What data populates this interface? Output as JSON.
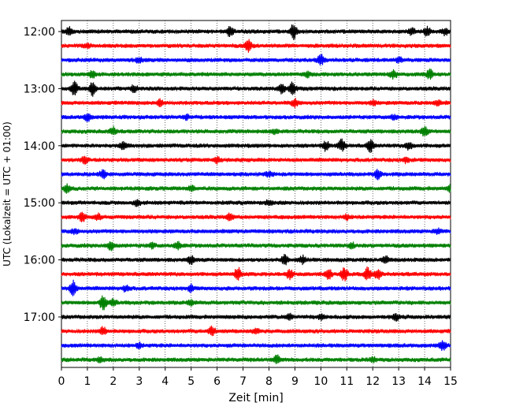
{
  "chart_data": {
    "type": "line",
    "title": "",
    "xlabel": "Zeit  [min]",
    "ylabel": "UTC (Lokalzeit = UTC + 01:00)",
    "xlim": [
      0,
      15
    ],
    "x_ticks": [
      "0",
      "1",
      "2",
      "3",
      "4",
      "5",
      "6",
      "7",
      "8",
      "9",
      "10",
      "11",
      "12",
      "13",
      "14",
      "15"
    ],
    "y_ticks": [
      "12:00",
      "13:00",
      "14:00",
      "15:00",
      "16:00",
      "17:00"
    ],
    "y_tick_rows": [
      0,
      4,
      8,
      12,
      16,
      20
    ],
    "grid": "vertical dotted at each minute",
    "trace_interval_min": 15,
    "row_colors": [
      "#000000",
      "#ff0000",
      "#0000ff",
      "#008000"
    ],
    "rows": [
      {
        "start": "12:00",
        "events": [
          [
            0.3,
            0.5
          ],
          [
            6.5,
            0.6
          ],
          [
            8.95,
            1.0
          ],
          [
            13.5,
            0.4
          ],
          [
            14.1,
            0.6
          ],
          [
            14.8,
            0.4
          ]
        ]
      },
      {
        "start": "12:15",
        "events": [
          [
            7.2,
            0.8
          ],
          [
            1.0,
            0.3
          ]
        ]
      },
      {
        "start": "12:30",
        "events": [
          [
            10.0,
            0.7
          ],
          [
            3.0,
            0.3
          ],
          [
            13.0,
            0.3
          ]
        ]
      },
      {
        "start": "12:45",
        "events": [
          [
            1.2,
            0.5
          ],
          [
            12.8,
            0.5
          ],
          [
            14.2,
            0.6
          ],
          [
            9.5,
            0.3
          ]
        ]
      },
      {
        "start": "13:00",
        "events": [
          [
            0.5,
            1.0
          ],
          [
            1.2,
            0.9
          ],
          [
            2.8,
            0.4
          ],
          [
            8.5,
            0.7
          ],
          [
            8.9,
            0.8
          ]
        ]
      },
      {
        "start": "13:15",
        "events": [
          [
            3.8,
            0.4
          ],
          [
            9.0,
            0.5
          ],
          [
            12.0,
            0.3
          ],
          [
            14.5,
            0.3
          ]
        ]
      },
      {
        "start": "13:30",
        "events": [
          [
            1.0,
            0.5
          ],
          [
            4.8,
            0.3
          ],
          [
            12.8,
            0.3
          ]
        ]
      },
      {
        "start": "13:45",
        "events": [
          [
            2.0,
            0.5
          ],
          [
            8.2,
            0.3
          ],
          [
            14.0,
            0.6
          ]
        ]
      },
      {
        "start": "14:00",
        "events": [
          [
            2.4,
            0.5
          ],
          [
            10.2,
            0.6
          ],
          [
            10.8,
            0.8
          ],
          [
            11.9,
            0.8
          ],
          [
            13.4,
            0.5
          ]
        ]
      },
      {
        "start": "14:15",
        "events": [
          [
            0.9,
            0.4
          ],
          [
            6.0,
            0.4
          ],
          [
            13.3,
            0.3
          ]
        ]
      },
      {
        "start": "14:30",
        "events": [
          [
            1.6,
            0.5
          ],
          [
            12.2,
            0.6
          ],
          [
            8.0,
            0.3
          ]
        ]
      },
      {
        "start": "14:45",
        "events": [
          [
            0.2,
            0.5
          ],
          [
            5.0,
            0.3
          ],
          [
            15.0,
            0.4
          ]
        ]
      },
      {
        "start": "15:00",
        "events": [
          [
            2.9,
            0.4
          ],
          [
            8.0,
            0.3
          ]
        ]
      },
      {
        "start": "15:15",
        "events": [
          [
            0.8,
            0.6
          ],
          [
            1.4,
            0.4
          ],
          [
            6.5,
            0.4
          ],
          [
            11.0,
            0.3
          ]
        ]
      },
      {
        "start": "15:30",
        "events": [
          [
            0.5,
            0.3
          ],
          [
            14.5,
            0.3
          ]
        ]
      },
      {
        "start": "15:45",
        "events": [
          [
            1.9,
            0.6
          ],
          [
            4.5,
            0.5
          ],
          [
            3.5,
            0.3
          ],
          [
            11.2,
            0.3
          ]
        ]
      },
      {
        "start": "16:00",
        "events": [
          [
            5.0,
            0.5
          ],
          [
            8.6,
            0.6
          ],
          [
            9.3,
            0.5
          ],
          [
            12.5,
            0.5
          ]
        ]
      },
      {
        "start": "16:15",
        "events": [
          [
            6.8,
            0.8
          ],
          [
            8.8,
            0.6
          ],
          [
            10.3,
            0.7
          ],
          [
            10.9,
            0.9
          ],
          [
            11.8,
            0.9
          ],
          [
            12.2,
            0.7
          ]
        ]
      },
      {
        "start": "16:30",
        "events": [
          [
            0.45,
            1.0
          ],
          [
            2.5,
            0.4
          ],
          [
            5.0,
            0.4
          ]
        ]
      },
      {
        "start": "16:45",
        "events": [
          [
            1.6,
            1.0
          ],
          [
            2.0,
            0.4
          ],
          [
            5.0,
            0.3
          ]
        ]
      },
      {
        "start": "17:00",
        "events": [
          [
            8.8,
            0.4
          ],
          [
            12.9,
            0.4
          ],
          [
            10.0,
            0.3
          ]
        ]
      },
      {
        "start": "17:15",
        "events": [
          [
            1.6,
            0.5
          ],
          [
            5.8,
            0.6
          ],
          [
            7.5,
            0.3
          ]
        ]
      },
      {
        "start": "17:30",
        "events": [
          [
            3.0,
            0.3
          ],
          [
            14.7,
            0.6
          ]
        ]
      },
      {
        "start": "17:45",
        "events": [
          [
            8.3,
            0.6
          ],
          [
            1.5,
            0.3
          ],
          [
            12.0,
            0.3
          ]
        ]
      }
    ]
  }
}
